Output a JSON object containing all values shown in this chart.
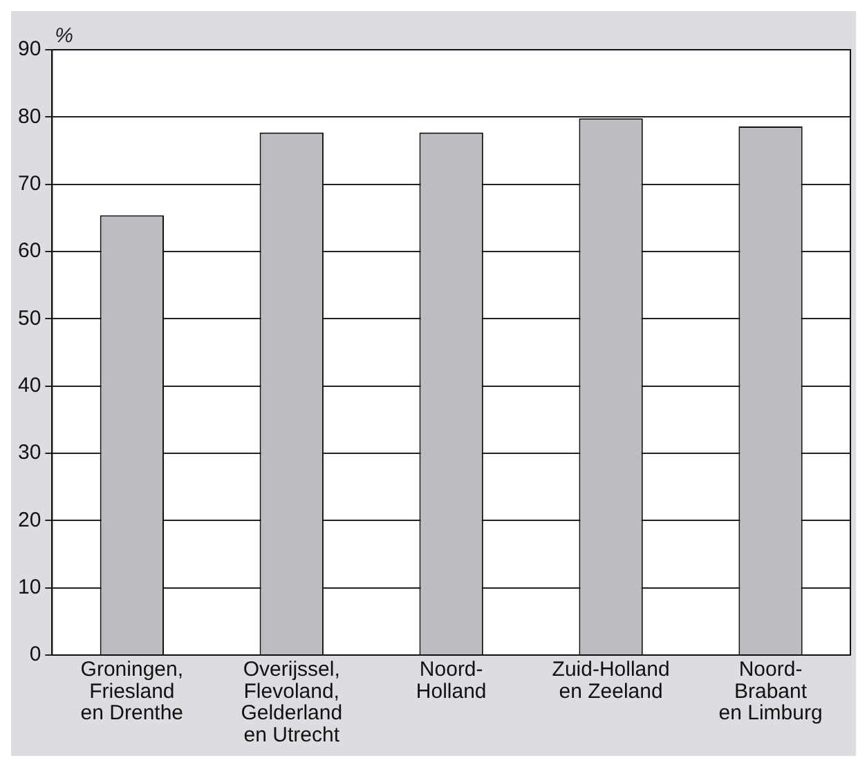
{
  "chart_data": {
    "type": "bar",
    "ylabel": "%",
    "categories": [
      "Groningen,\nFriesland\nen Drenthe",
      "Overijssel,\nFlevoland,\nGelderland\nen Utrecht",
      "Noord-\nHolland",
      "Zuid-Holland\nen Zeeland",
      "Noord-\nBrabant\nen Limburg"
    ],
    "values": [
      65.4,
      77.7,
      77.7,
      79.8,
      78.6
    ],
    "color": "#bcbdc1",
    "ylim": [
      0,
      90
    ],
    "yticks": [
      0,
      10,
      20,
      30,
      40,
      50,
      60,
      70,
      80,
      90
    ],
    "grid": "y",
    "legend": false
  }
}
